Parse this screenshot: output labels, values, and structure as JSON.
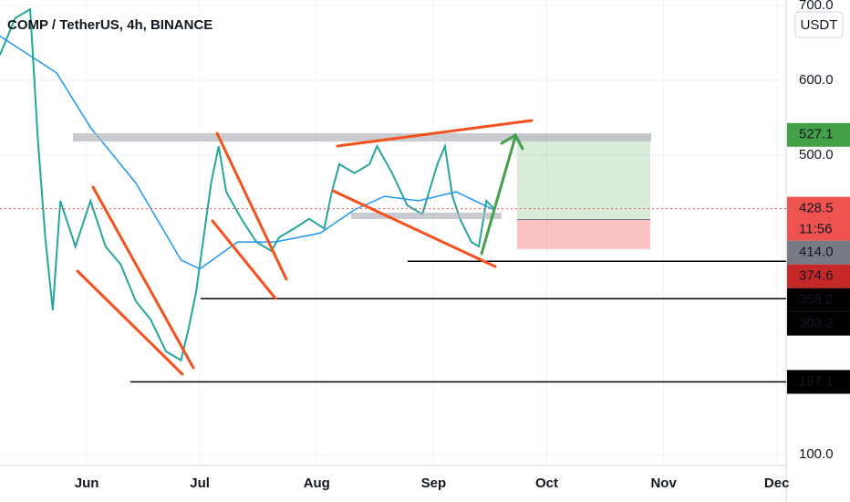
{
  "chart_data": {
    "type": "line",
    "title": "COMP / TetherUS, 4h, BINANCE",
    "currency": "USDT",
    "xlim": [
      0,
      208.5
    ],
    "xticks": [
      {
        "value": 23,
        "label": "Jun"
      },
      {
        "value": 53,
        "label": "Jul"
      },
      {
        "value": 84,
        "label": "Aug"
      },
      {
        "value": 115,
        "label": "Sep"
      },
      {
        "value": 145,
        "label": "Oct"
      },
      {
        "value": 176,
        "label": "Nov"
      },
      {
        "value": 206,
        "label": "Dec"
      }
    ],
    "ylim": [
      85.4,
      707.3
    ],
    "yticks": [
      {
        "value": 100,
        "label": "100.0"
      },
      {
        "value": 500,
        "label": "500.0"
      },
      {
        "value": 600,
        "label": "600.0"
      },
      {
        "value": 700,
        "label": "700.0"
      }
    ],
    "series": [
      {
        "color": "#26a69a",
        "x": [
          0,
          4,
          8,
          10,
          12,
          14,
          16,
          20,
          24,
          28,
          32,
          36,
          40,
          44,
          48,
          50,
          52,
          54,
          56,
          58,
          60,
          64,
          68,
          72,
          74,
          78,
          82,
          86,
          88,
          90,
          94,
          98,
          100,
          104,
          108,
          112,
          116,
          118,
          120,
          122,
          125,
          127,
          129,
          131
        ],
        "values": [
          634,
          683,
          695,
          524,
          390,
          293,
          439,
          378,
          439,
          378,
          354,
          305,
          280,
          238,
          226,
          268,
          317,
          390,
          463,
          512,
          451,
          415,
          384,
          372,
          390,
          402,
          415,
          402,
          451,
          488,
          476,
          488,
          512,
          476,
          433,
          421,
          488,
          512,
          445,
          415,
          384,
          378,
          439,
          428.5
        ]
      },
      {
        "color": "#2196f3",
        "x": [
          0,
          15,
          24,
          36,
          48,
          53,
          63,
          73,
          85,
          94,
          102,
          111,
          121,
          131
        ],
        "values": [
          659,
          610,
          537,
          463,
          360,
          348,
          384,
          384,
          396,
          427,
          445,
          439,
          451,
          427
        ]
      }
    ],
    "price_tags": [
      {
        "value": 527.1,
        "label": "527.1",
        "color": "#43a047"
      },
      {
        "value": 428.5,
        "label": "428.5",
        "color": "#ef5350"
      },
      {
        "value": 414,
        "label": "414.0",
        "color": "#787b86"
      },
      {
        "value": 374.6,
        "label": "374.6",
        "color": "#c62828"
      },
      {
        "value": 358.2,
        "label": "358.2",
        "color": "#000000"
      },
      {
        "value": 308.2,
        "label": "308.2",
        "color": "#000000"
      },
      {
        "value": 197.1,
        "label": "197.1",
        "color": "#000000"
      }
    ],
    "countdown": "11:56"
  }
}
